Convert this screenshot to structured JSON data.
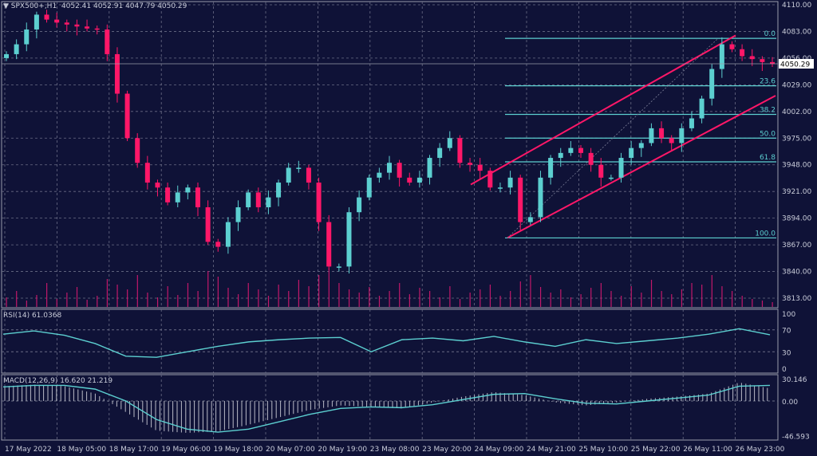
{
  "header": {
    "symbol": "SPX500+,H1",
    "ohlc": "4052.41 4052.91 4047.79 4050.29"
  },
  "colors": {
    "background": "#0f1237",
    "bull": "#5ccfd0",
    "bear": "#ff1768",
    "grid": "#6a6d86",
    "fib": "#5ccfd0",
    "channel": "#ff1768",
    "volume": "#c2186a"
  },
  "chart_data": [
    {
      "type": "candlestick",
      "ylim": [
        3813,
        4110
      ],
      "y_ticks": [
        "4110.00",
        "4083.00",
        "4056.00",
        "4029.00",
        "4002.00",
        "3975.00",
        "3948.00",
        "3921.00",
        "3894.00",
        "3867.00",
        "3840.00",
        "3813.00"
      ],
      "x_ticks": [
        "17 May 2022",
        "18 May 05:00",
        "18 May 17:00",
        "19 May 06:00",
        "19 May 18:00",
        "20 May 07:00",
        "20 May 19:00",
        "23 May 08:00",
        "23 May 20:00",
        "24 May 09:00",
        "24 May 21:00",
        "25 May 10:00",
        "25 May 22:00",
        "26 May 11:00",
        "26 May 23:00"
      ],
      "last_price": "4050.29",
      "closes": [
        4060,
        4070,
        4085,
        4100,
        4095,
        4092,
        4090,
        4088,
        4086,
        4085,
        4060,
        4020,
        3975,
        3950,
        3930,
        3925,
        3910,
        3920,
        3925,
        3905,
        3870,
        3865,
        3890,
        3905,
        3920,
        3905,
        3915,
        3930,
        3945,
        3945,
        3930,
        3890,
        3845,
        3845,
        3900,
        3915,
        3935,
        3940,
        3950,
        3935,
        3930,
        3935,
        3955,
        3965,
        3975,
        3950,
        3948,
        3942,
        3925,
        3925,
        3935,
        3890,
        3895,
        3935,
        3955,
        3960,
        3965,
        3960,
        3948,
        3935,
        3935,
        3955,
        3965,
        3970,
        3985,
        3975,
        3970,
        3985,
        3995,
        4015,
        4045,
        4070,
        4065,
        4058,
        4055,
        4052,
        4050
      ],
      "volume": [
        12,
        20,
        8,
        15,
        30,
        10,
        18,
        25,
        9,
        14,
        35,
        28,
        22,
        40,
        18,
        12,
        26,
        15,
        30,
        20,
        45,
        38,
        24,
        16,
        30,
        22,
        14,
        28,
        20,
        34,
        26,
        40,
        48,
        30,
        22,
        18,
        25,
        14,
        20,
        30,
        16,
        24,
        20,
        12,
        26,
        10,
        18,
        22,
        28,
        14,
        20,
        32,
        40,
        25,
        18,
        22,
        12,
        16,
        24,
        30,
        20,
        14,
        26,
        18,
        34,
        20,
        16,
        22,
        30,
        28,
        40,
        26,
        20,
        14,
        10,
        8,
        6
      ],
      "fibonacci": {
        "levels": [
          {
            "label": "0.0",
            "price": 4076
          },
          {
            "label": "23.6",
            "price": 4028
          },
          {
            "label": "38.2",
            "price": 3999
          },
          {
            "label": "50.0",
            "price": 3975
          },
          {
            "label": "61.8",
            "price": 3951
          },
          {
            "label": "100.0",
            "price": 3874
          }
        ]
      },
      "channel": {
        "upper": [
          3928,
          4079
        ],
        "lower": [
          3874,
          4018
        ]
      }
    },
    {
      "type": "line",
      "title": "RSI(14) 61.0368",
      "ylim": [
        0,
        100
      ],
      "y_ticks": [
        "100",
        "70",
        "30",
        "0"
      ],
      "levels": [
        70,
        30
      ],
      "values": [
        62,
        68,
        60,
        45,
        22,
        20,
        30,
        40,
        48,
        52,
        55,
        56,
        30,
        52,
        55,
        50,
        58,
        48,
        40,
        52,
        45,
        50,
        55,
        62,
        72,
        61
      ]
    },
    {
      "type": "bar",
      "title": "MACD(12,26,9) 16.620 21.219",
      "ylim": [
        -46.593,
        30.146
      ],
      "y_ticks": [
        "30.146",
        "0.00",
        "-46.593"
      ],
      "macd": [
        20,
        22,
        20,
        10,
        -15,
        -40,
        -43,
        -41,
        -32,
        -22,
        -12,
        -6,
        -8,
        -10,
        -2,
        6,
        12,
        8,
        -2,
        -6,
        -2,
        3,
        6,
        10,
        25,
        17
      ],
      "signal": [
        19,
        21,
        21,
        16,
        0,
        -25,
        -38,
        -42,
        -38,
        -28,
        -18,
        -10,
        -8,
        -9,
        -5,
        2,
        9,
        10,
        3,
        -3,
        -4,
        0,
        4,
        8,
        20,
        21
      ]
    }
  ]
}
